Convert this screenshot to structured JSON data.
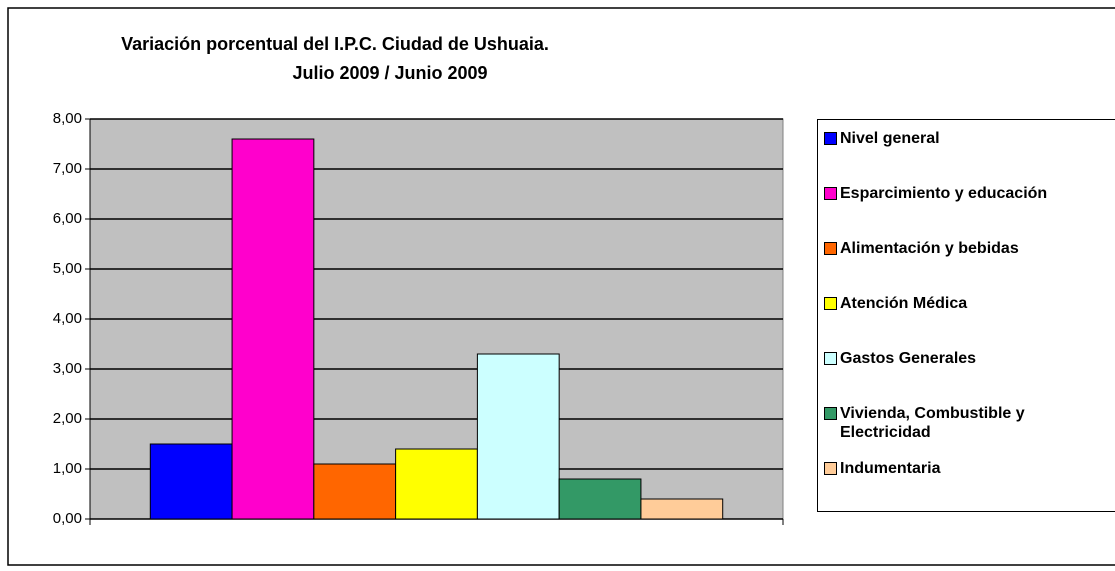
{
  "chart_data": {
    "type": "bar",
    "title": "Variación porcentual del I.P.C. Ciudad de Ushuaia.",
    "subtitle": "Julio 2009 / Junio 2009",
    "categories": [
      null
    ],
    "series": [
      {
        "name": "Nivel general",
        "color": "#0000ff",
        "values": [
          1.5
        ]
      },
      {
        "name": "Esparcimiento y educación",
        "color": "#ff00cc",
        "values": [
          7.6
        ]
      },
      {
        "name": "Alimentación y bebidas",
        "color": "#ff6600",
        "values": [
          1.1
        ]
      },
      {
        "name": "Atención Médica",
        "color": "#ffff00",
        "values": [
          1.4
        ]
      },
      {
        "name": "Gastos Generales",
        "color": "#ccffff",
        "values": [
          3.3
        ]
      },
      {
        "name": "Vivienda, Combustible y Electricidad",
        "color": "#339966",
        "values": [
          0.8
        ]
      },
      {
        "name": "Indumentaria",
        "color": "#ffcc99",
        "values": [
          0.4
        ]
      }
    ],
    "ylim": [
      0,
      8
    ],
    "yticks": [
      {
        "value": 0,
        "label": "0,00"
      },
      {
        "value": 1,
        "label": "1,00"
      },
      {
        "value": 2,
        "label": "2,00"
      },
      {
        "value": 3,
        "label": "3,00"
      },
      {
        "value": 4,
        "label": "4,00"
      },
      {
        "value": 5,
        "label": "5,00"
      },
      {
        "value": 6,
        "label": "6,00"
      },
      {
        "value": 7,
        "label": "7,00"
      },
      {
        "value": 8,
        "label": "8,00"
      }
    ],
    "grid": true,
    "legend": "right"
  }
}
